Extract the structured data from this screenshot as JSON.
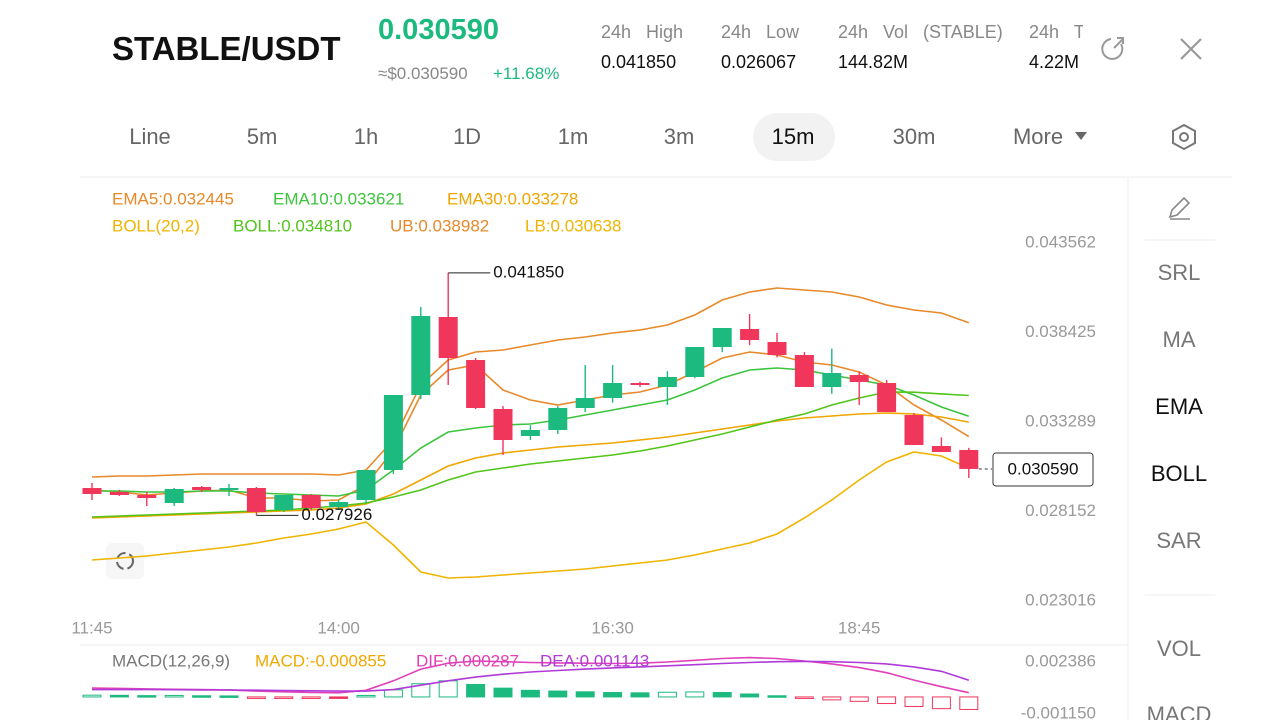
{
  "header": {
    "pair": "STABLE/USDT",
    "price": "0.030590",
    "approx": "≈$0.030590",
    "change": "+11.68%",
    "stats": [
      {
        "label": "24h High",
        "value": "0.041850"
      },
      {
        "label": "24h Low",
        "value": "0.026067"
      },
      {
        "label": "24h Vol (STABLE)",
        "value": "144.82M"
      },
      {
        "label": "24h T",
        "value": "4.22M"
      }
    ]
  },
  "tabs": {
    "items": [
      "Line",
      "5m",
      "1h",
      "1D",
      "1m",
      "3m",
      "15m",
      "30m",
      "More"
    ],
    "active_index": 6
  },
  "tools": {
    "items": [
      "SRL",
      "MA",
      "EMA",
      "BOLL",
      "SAR",
      "VOL",
      "MACD"
    ],
    "active_indices": [
      2,
      3
    ]
  },
  "chart_data": [
    {
      "type": "candlestick",
      "categories": [
        "11:45",
        null,
        null,
        null,
        null,
        null,
        null,
        null,
        null,
        "14:00",
        null,
        null,
        null,
        null,
        null,
        null,
        null,
        null,
        null,
        "16:30",
        null,
        null,
        null,
        null,
        null,
        null,
        null,
        null,
        "18:45",
        null,
        null,
        null,
        null
      ],
      "open": [
        0.029495,
        0.029266,
        0.029093,
        0.028634,
        0.029553,
        0.029381,
        0.029495,
        0.028232,
        0.029093,
        0.028404,
        0.028806,
        0.030529,
        0.034837,
        0.039318,
        0.036847,
        0.034033,
        0.032482,
        0.032827,
        0.03409,
        0.034665,
        0.035526,
        0.035297,
        0.035871,
        0.037594,
        0.038628,
        0.037881,
        0.037134,
        0.035297,
        0.035986,
        0.035526,
        0.033689,
        0.031908,
        0.031679
      ],
      "high": [
        0.029782,
        0.029381,
        0.029266,
        0.029495,
        0.02961,
        0.029725,
        0.029553,
        0.029093,
        0.02915,
        0.028806,
        0.030529,
        0.034837,
        0.039892,
        0.04185,
        0.036962,
        0.0342,
        0.0331,
        0.0342,
        0.03656,
        0.03656,
        0.0356,
        0.0362,
        0.037594,
        0.038686,
        0.03949,
        0.0384,
        0.0373,
        0.0375,
        0.0362,
        0.0357,
        0.0338,
        0.0324,
        0.0318
      ],
      "low": [
        0.028806,
        0.029036,
        0.028461,
        0.028461,
        0.029266,
        0.029036,
        0.027926,
        0.028117,
        0.028232,
        0.028232,
        0.028634,
        0.0303,
        0.0346,
        0.035412,
        0.034033,
        0.031391,
        0.032252,
        0.0326,
        0.033861,
        0.0344,
        0.0353,
        0.034263,
        0.0358,
        0.0373,
        0.0377,
        0.037,
        0.035297,
        0.0349,
        0.034263,
        0.033861,
        0.031966,
        0.031564,
        0.03007
      ],
      "close": [
        0.02915,
        0.029093,
        0.028921,
        0.029438,
        0.029381,
        0.029495,
        0.028117,
        0.029093,
        0.028346,
        0.028691,
        0.030529,
        0.034837,
        0.039375,
        0.036962,
        0.03409,
        0.032252,
        0.032827,
        0.03409,
        0.034665,
        0.035526,
        0.035412,
        0.035871,
        0.037594,
        0.038686,
        0.037996,
        0.037134,
        0.035297,
        0.036101,
        0.035584,
        0.033861,
        0.031966,
        0.031564,
        0.03059
      ],
      "up_color": "#1dba7f",
      "down_color": "#f0365a",
      "ylim": [
        0.0222,
        0.0469
      ],
      "yticks": [
        0.043562,
        0.038425,
        0.033289,
        0.028152,
        0.023016
      ],
      "max_label": "0.041850",
      "min_label": "0.027926",
      "last_label": "0.030590",
      "overlay_label": "BOLL(20,2)",
      "overlay_label_color": "#f0b400",
      "series": [
        {
          "name": "EMA5:0.032445",
          "color": "#e8892a",
          "values": [
            0.02938,
            0.029266,
            0.029093,
            0.029208,
            0.029323,
            0.02938,
            0.028921,
            0.028921,
            0.028749,
            0.028806,
            0.029668,
            0.031678,
            0.034837,
            0.036273,
            0.03656,
            0.035124,
            0.03455,
            0.034263,
            0.03455,
            0.034837,
            0.03501,
            0.035412,
            0.036158,
            0.036962,
            0.037307,
            0.037134,
            0.036733,
            0.03656,
            0.036158,
            0.035412,
            0.034263,
            0.033402,
            0.032445
          ]
        },
        {
          "name": "EMA10:0.033621",
          "color": "#3cc43c",
          "values": [
            0.029323,
            0.029323,
            0.029266,
            0.029266,
            0.029323,
            0.029323,
            0.029208,
            0.029151,
            0.029093,
            0.029036,
            0.02938,
            0.03053,
            0.031793,
            0.032712,
            0.032942,
            0.033114,
            0.033172,
            0.033402,
            0.033689,
            0.033976,
            0.034263,
            0.03455,
            0.035124,
            0.035813,
            0.036273,
            0.036388,
            0.036273,
            0.035986,
            0.035699,
            0.035412,
            0.034837,
            0.034148,
            0.033621
          ]
        },
        {
          "name": "EMA30:0.033278",
          "color": "#f0a500",
          "values": [
            0.027773,
            0.02783,
            0.027888,
            0.027945,
            0.028002,
            0.02806,
            0.028117,
            0.028175,
            0.028232,
            0.028347,
            0.028577,
            0.029151,
            0.029955,
            0.030759,
            0.031219,
            0.031506,
            0.031678,
            0.03185,
            0.031966,
            0.03208,
            0.032252,
            0.032425,
            0.032654,
            0.032884,
            0.033114,
            0.033344,
            0.033517,
            0.033631,
            0.033747,
            0.033803,
            0.033747,
            0.033574,
            0.033278
          ]
        },
        {
          "name": "BOLL:0.034810",
          "color": "#52c41a",
          "values": [
            0.02783,
            0.027888,
            0.027945,
            0.028002,
            0.02806,
            0.028117,
            0.028175,
            0.028232,
            0.028347,
            0.028462,
            0.028634,
            0.028979,
            0.02938,
            0.029955,
            0.030415,
            0.030645,
            0.030874,
            0.031047,
            0.031219,
            0.031391,
            0.031621,
            0.031908,
            0.032252,
            0.032597,
            0.033,
            0.033402,
            0.033747,
            0.034263,
            0.034665,
            0.03501,
            0.035,
            0.0349,
            0.03481
          ]
        },
        {
          "name": "UB:0.038982",
          "color": "#e8892a",
          "values": [
            0.030127,
            0.030185,
            0.030185,
            0.030242,
            0.0303,
            0.0303,
            0.0303,
            0.0303,
            0.0303,
            0.030242,
            0.03053,
            0.032252,
            0.035412,
            0.036848,
            0.037307,
            0.037422,
            0.037709,
            0.037996,
            0.038169,
            0.038398,
            0.038571,
            0.038858,
            0.039432,
            0.040294,
            0.040754,
            0.040983,
            0.040868,
            0.040754,
            0.040466,
            0.040007,
            0.03972,
            0.039547,
            0.038982
          ]
        },
        {
          "name": "LB:0.030638",
          "color": "#f0b400",
          "values": [
            0.025359,
            0.025474,
            0.025589,
            0.025762,
            0.025934,
            0.026106,
            0.026336,
            0.026623,
            0.026853,
            0.02714,
            0.027542,
            0.026221,
            0.02467,
            0.024325,
            0.024382,
            0.024497,
            0.024612,
            0.024727,
            0.024842,
            0.025014,
            0.025187,
            0.025359,
            0.025647,
            0.025991,
            0.026336,
            0.026853,
            0.027772,
            0.028806,
            0.029955,
            0.030989,
            0.031563,
            0.031334,
            0.030638
          ]
        }
      ]
    },
    {
      "type": "macd",
      "title": "MACD(12,26,9)",
      "histogram": {
        "name": "MACD:-0.000855",
        "color": "#f0a800",
        "values": [
          0.00012,
          0.00011,
          9e-05,
          0.0001,
          8e-05,
          7e-05,
          -3e-05,
          -5e-05,
          -6e-05,
          -4e-05,
          0.0001,
          0.00048,
          0.0009,
          0.0011,
          0.00085,
          0.0006,
          0.00045,
          0.0004,
          0.00035,
          0.0003,
          0.00028,
          0.00032,
          0.00034,
          0.0003,
          0.0002,
          8e-05,
          -8e-05,
          -0.0002,
          -0.0003,
          -0.00045,
          -0.00065,
          -0.0008,
          -0.000855
        ]
      },
      "up_color": "#1dba7f",
      "down_color": "#f0365a",
      "ylim": [
        -0.0013,
        0.0032
      ],
      "yticks": [
        0.002386,
        {
          "value": -0.00115,
          "label": "-0.001150"
        }
      ],
      "series": [
        {
          "name": "DIF:0.000287",
          "color": "#e040b8",
          "values": [
            0.0006,
            0.00058,
            0.00055,
            0.00052,
            0.0005,
            0.00048,
            0.0004,
            0.00035,
            0.0003,
            0.00028,
            0.00045,
            0.0011,
            0.0019,
            0.0023,
            0.00245,
            0.0024,
            0.00235,
            0.00232,
            0.0023,
            0.00228,
            0.0023,
            0.00238,
            0.0025,
            0.00262,
            0.00268,
            0.00262,
            0.00245,
            0.00225,
            0.002,
            0.00165,
            0.00115,
            0.0007,
            0.000287
          ]
        },
        {
          "name": "DEA:0.001143",
          "color": "#b03ad8",
          "values": [
            0.0005,
            0.0005,
            0.0005,
            0.00049,
            0.00048,
            0.00047,
            0.00046,
            0.00044,
            0.00042,
            0.0004,
            0.0004,
            0.0005,
            0.0008,
            0.0011,
            0.00135,
            0.00155,
            0.0017,
            0.0018,
            0.0019,
            0.00198,
            0.00205,
            0.00212,
            0.0022,
            0.00228,
            0.00235,
            0.0024,
            0.00242,
            0.0024,
            0.00235,
            0.00225,
            0.00205,
            0.00175,
            0.001143
          ]
        }
      ]
    }
  ]
}
